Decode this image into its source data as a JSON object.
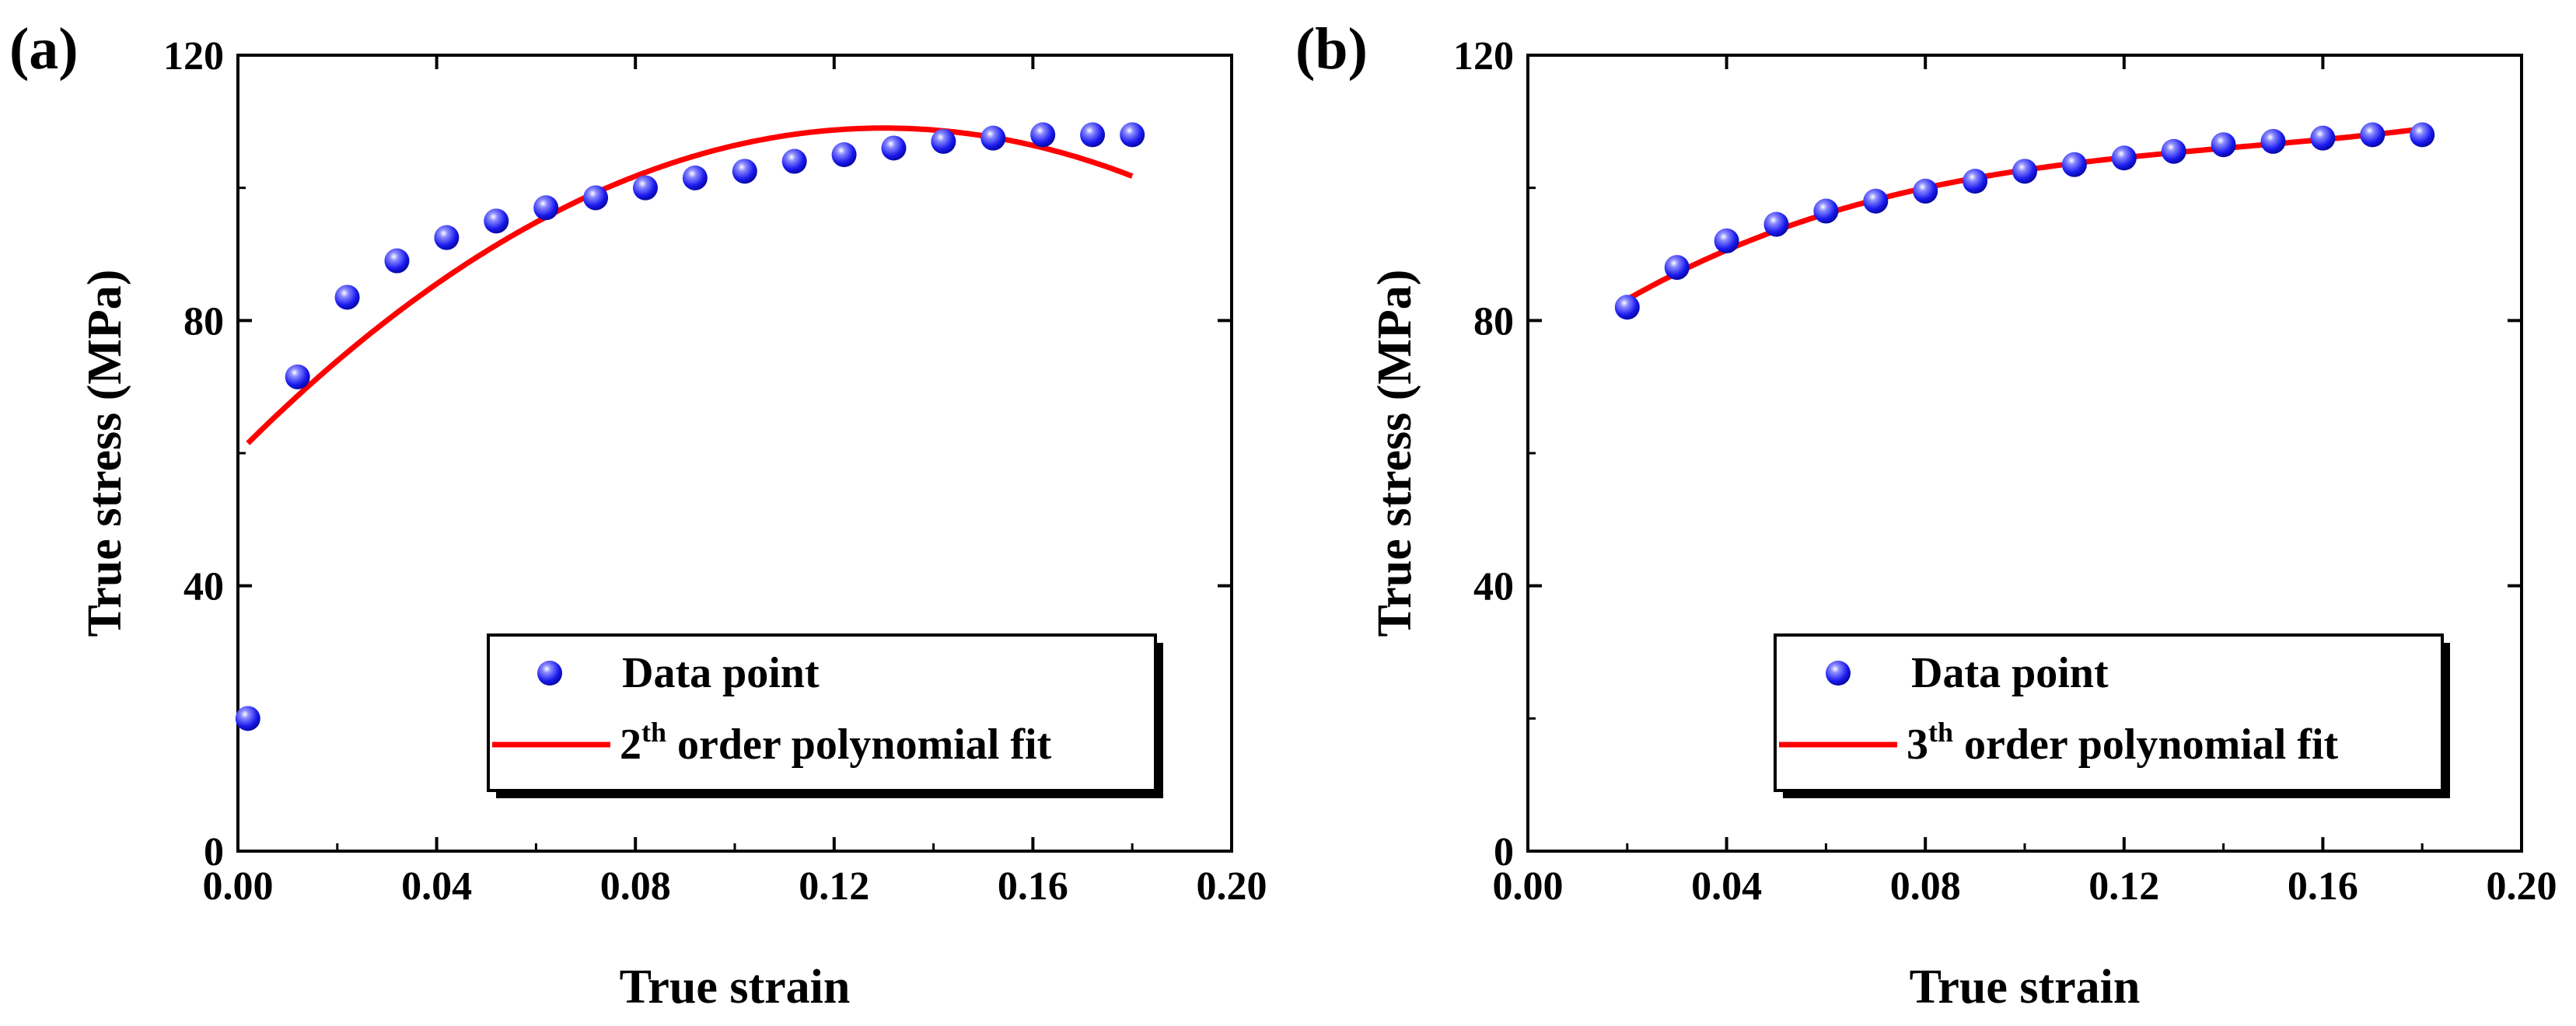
{
  "figure": {
    "panels": [
      "(a)",
      "(b)"
    ]
  },
  "chart_data": [
    {
      "type": "scatter",
      "panel": "(a)",
      "title": "",
      "xlabel": "True strain",
      "ylabel": "True stress (MPa)",
      "xlim": [
        0.0,
        0.2
      ],
      "ylim": [
        0,
        120
      ],
      "xticks": [
        "0.00",
        "0.04",
        "0.08",
        "0.12",
        "0.16",
        "0.20"
      ],
      "yticks": [
        "0",
        "40",
        "80",
        "120"
      ],
      "grid": false,
      "legend_position": "bottom-right",
      "series": [
        {
          "name": "Data point",
          "kind": "scatter",
          "color": "#2a2aff",
          "x": [
            0.002,
            0.012,
            0.022,
            0.032,
            0.042,
            0.052,
            0.062,
            0.072,
            0.082,
            0.092,
            0.102,
            0.112,
            0.122,
            0.132,
            0.142,
            0.152,
            0.162,
            0.172,
            0.18
          ],
          "y": [
            20,
            71.5,
            83.5,
            89,
            92.5,
            95,
            97,
            98.5,
            100,
            101.5,
            102.5,
            104,
            105,
            106,
            107,
            107.5,
            108,
            108,
            108
          ]
        },
        {
          "name": "2th order polynomial fit",
          "kind": "line",
          "color": "#ff0000",
          "model": {
            "form": "polynomial",
            "coefficients": [
              60.0,
              754.0,
              -2900.0
            ],
            "xrange": [
              0.002,
              0.18
            ]
          }
        }
      ],
      "legend": {
        "entries": [
          {
            "label": "Data point",
            "kind": "marker"
          },
          {
            "label_base": "2",
            "label_sup": "th",
            "label_rest": " order polynomial fit",
            "kind": "line"
          }
        ]
      }
    },
    {
      "type": "scatter",
      "panel": "(b)",
      "title": "",
      "xlabel": "True strain",
      "ylabel": "True stress (MPa)",
      "xlim": [
        0.0,
        0.2
      ],
      "ylim": [
        0,
        120
      ],
      "xticks": [
        "0.00",
        "0.04",
        "0.08",
        "0.12",
        "0.16",
        "0.20"
      ],
      "yticks": [
        "0",
        "40",
        "80",
        "120"
      ],
      "grid": false,
      "legend_position": "bottom-right",
      "series": [
        {
          "name": "Data point",
          "kind": "scatter",
          "color": "#2a2aff",
          "x": [
            0.02,
            0.03,
            0.04,
            0.05,
            0.06,
            0.07,
            0.08,
            0.09,
            0.1,
            0.11,
            0.12,
            0.13,
            0.14,
            0.15,
            0.16,
            0.17,
            0.18
          ],
          "y": [
            82,
            88,
            92,
            94.5,
            96.5,
            98,
            99.5,
            101,
            102.5,
            103.5,
            104.5,
            105.5,
            106.5,
            107,
            107.5,
            108,
            108
          ]
        },
        {
          "name": "3th order polynomial fit",
          "kind": "line",
          "color": "#ff0000",
          "model": {
            "form": "polynomial",
            "coefficients": [
              73.43,
              551.46,
              -3362.9,
              7742.0
            ],
            "xrange": [
              0.02,
              0.18
            ]
          }
        }
      ],
      "legend": {
        "entries": [
          {
            "label": "Data point",
            "kind": "marker"
          },
          {
            "label_base": "3",
            "label_sup": "th",
            "label_rest": " order polynomial fit",
            "kind": "line"
          }
        ]
      }
    }
  ]
}
